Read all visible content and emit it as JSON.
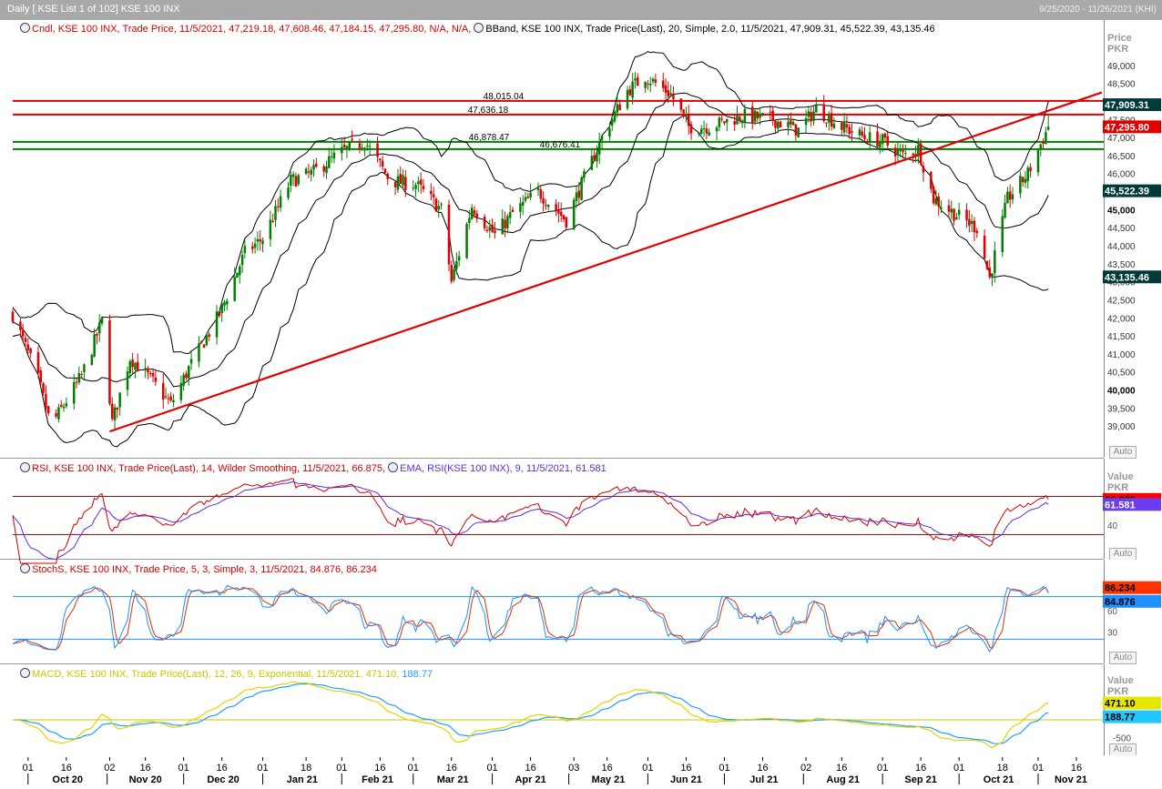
{
  "window": {
    "title": "Daily [.KSE List 1 of 102] KSE 100 INX",
    "range": "9/25/2020 - 11/26/2021 (KHI)",
    "controls": "▼ ✕"
  },
  "price_pane": {
    "legend_cndl": "Cndl, KSE 100 INX, Trade Price, 11/5/2021, 47,219.18, 47,608.46, 47,184.15, 47,295.80, N/A, N/A,",
    "legend_bband": "BBand, KSE 100 INX, Trade Price(Last), 20, Simple, 2.0, 11/5/2021, 47,909.31, 45,522.39, 43,135.46",
    "axis_title": "Price\nPKR",
    "auto_label": "Auto",
    "hlines": [
      {
        "label": "48,015.04",
        "value": 48015.04,
        "color": "#e00000"
      },
      {
        "label": "47,636.18",
        "value": 47636.18,
        "color": "#e00000"
      },
      {
        "label": "46,878.47",
        "value": 46878.47,
        "color": "#008000"
      },
      {
        "label": "46,676.41",
        "value": 46676.41,
        "color": "#008000"
      }
    ],
    "badges": [
      {
        "text": "47,909.31",
        "value": 47909.31,
        "bg": "#003a3a",
        "fg": "#ffffff"
      },
      {
        "text": "47,295.80",
        "value": 47295.8,
        "bg": "#e00000",
        "fg": "#ffffff"
      },
      {
        "text": "45,522.39",
        "value": 45522.39,
        "bg": "#003a3a",
        "fg": "#ffffff"
      },
      {
        "text": "43,135.46",
        "value": 43135.46,
        "bg": "#003a3a",
        "fg": "#ffffff"
      }
    ]
  },
  "rsi_pane": {
    "legend_rsi": "RSI, KSE 100 INX, Trade Price(Last),  14, Wilder Smoothing,  11/5/2021, 66.875,",
    "legend_ema": "EMA, RSI(KSE 100 INX),  9,  11/5/2021, 61.581",
    "axis_title": "Value\nPKR",
    "auto_label": "Auto",
    "ticks": [
      "40"
    ],
    "badges": [
      {
        "text": "66.875",
        "bg": "#ff0000",
        "fg": "#000000"
      },
      {
        "text": "61.581",
        "bg": "#6a3df0",
        "fg": "#ffffff"
      }
    ]
  },
  "stoch_pane": {
    "legend": "StochS, KSE 100 INX, Trade Price,  5, 3, Simple,  3,  11/5/2021, 84.876, 86.234",
    "auto_label": "Auto",
    "ticks": [
      "60",
      "30"
    ],
    "badges": [
      {
        "text": "86.234",
        "bg": "#ff3300",
        "fg": "#000000"
      },
      {
        "text": "84.876",
        "bg": "#1e90ff",
        "fg": "#000000"
      }
    ]
  },
  "macd_pane": {
    "legend_macd": "MACD, KSE 100 INX, Trade Price(Last),  12, 26, 9, Exponential,  11/5/2021, 471.10,",
    "legend_signal": "188.77",
    "axis_title": "Value\nPKR",
    "auto_label": "Auto",
    "ticks": [
      "-500"
    ],
    "badges": [
      {
        "text": "471.10",
        "bg": "#e6e600",
        "fg": "#000000"
      },
      {
        "text": "188.77",
        "bg": "#1ec8ff",
        "fg": "#000000"
      }
    ]
  },
  "x_axis": {
    "day_ticks": [
      "01",
      "16",
      "02",
      "16",
      "01",
      "16",
      "01",
      "18",
      "01",
      "16",
      "01",
      "16",
      "01",
      "03",
      "01",
      "16",
      "01",
      "16",
      "02",
      "16",
      "01",
      "16",
      "01",
      "18",
      "01",
      "16"
    ],
    "months": [
      "Oct 20",
      "Nov 20",
      "Dec 20",
      "Jan 21",
      "Feb 21",
      "Mar 21",
      "Apr 21",
      "May 21",
      "Jun 21",
      "Jul 21",
      "Aug 21",
      "Sep 21",
      "Oct 21",
      "Nov 21"
    ]
  },
  "chart_data": {
    "type": "candlestick",
    "title": "KSE 100 INX",
    "ylabel": "Price PKR",
    "ylim": [
      38500,
      49500
    ],
    "yticks": [
      39000,
      39500,
      40000,
      40500,
      41000,
      41500,
      42000,
      42500,
      43000,
      43500,
      44000,
      44500,
      45000,
      45500,
      46000,
      46500,
      47000,
      47500,
      48000,
      48500,
      49000
    ],
    "ytick_labels": [
      "39,000",
      "39,500",
      "40,000",
      "40,500",
      "41,000",
      "41,500",
      "42,000",
      "42,500",
      "43,000",
      "43,500",
      "44,000",
      "44,500",
      "45,000",
      "45,500",
      "46,000",
      "46,500",
      "47,000",
      "47,500",
      "48,000",
      "48,500",
      "49,000"
    ],
    "close_anchors": [
      [
        "2020-09-25",
        42100
      ],
      [
        "2020-10-05",
        40300
      ],
      [
        "2020-10-10",
        39000
      ],
      [
        "2020-10-22",
        40400
      ],
      [
        "2020-10-30",
        41900
      ],
      [
        "2020-11-03",
        39100
      ],
      [
        "2020-11-10",
        40900
      ],
      [
        "2020-11-18",
        40300
      ],
      [
        "2020-11-26",
        39600
      ],
      [
        "2020-12-03",
        40600
      ],
      [
        "2020-12-15",
        42100
      ],
      [
        "2020-12-25",
        43800
      ],
      [
        "2021-01-01",
        44200
      ],
      [
        "2021-01-12",
        45800
      ],
      [
        "2021-01-20",
        46000
      ],
      [
        "2021-02-01",
        46600
      ],
      [
        "2021-02-10",
        46900
      ],
      [
        "2021-02-20",
        45800
      ],
      [
        "2021-03-02",
        45700
      ],
      [
        "2021-03-12",
        45000
      ],
      [
        "2021-03-16",
        43000
      ],
      [
        "2021-03-24",
        45100
      ],
      [
        "2021-04-02",
        44300
      ],
      [
        "2021-04-09",
        44900
      ],
      [
        "2021-04-19",
        45500
      ],
      [
        "2021-04-30",
        44700
      ],
      [
        "2021-05-06",
        45700
      ],
      [
        "2021-05-14",
        47000
      ],
      [
        "2021-05-24",
        48300
      ],
      [
        "2021-05-31",
        48700
      ],
      [
        "2021-06-10",
        48200
      ],
      [
        "2021-06-17",
        47300
      ],
      [
        "2021-06-25",
        47300
      ],
      [
        "2021-07-08",
        47600
      ],
      [
        "2021-07-20",
        47500
      ],
      [
        "2021-07-30",
        47200
      ],
      [
        "2021-08-06",
        47800
      ],
      [
        "2021-08-16",
        47300
      ],
      [
        "2021-08-25",
        47000
      ],
      [
        "2021-09-01",
        46900
      ],
      [
        "2021-09-09",
        46500
      ],
      [
        "2021-09-15",
        46700
      ],
      [
        "2021-09-21",
        45300
      ],
      [
        "2021-10-01",
        44800
      ],
      [
        "2021-10-08",
        44500
      ],
      [
        "2021-10-13",
        43100
      ],
      [
        "2021-10-20",
        45300
      ],
      [
        "2021-10-28",
        46000
      ],
      [
        "2021-11-05",
        47295.8
      ]
    ],
    "last_bar": {
      "date": "2021-11-05",
      "open": 47219.18,
      "high": 47608.46,
      "low": 47184.15,
      "close": 47295.8
    },
    "trendline": {
      "start": [
        "2020-11-02",
        38850
      ],
      "end": [
        "2021-11-26",
        48250
      ]
    },
    "bollinger_last": {
      "upper": 47909.31,
      "middle": 45522.39,
      "lower": 43135.46
    },
    "rsi": {
      "period": 14,
      "last": 66.875,
      "ema_last": 61.581,
      "ref_lines": [
        70,
        30
      ]
    },
    "stoch": {
      "k_last": 84.876,
      "d_last": 86.234,
      "ref_lines": [
        80,
        20
      ]
    },
    "macd": {
      "fast": 12,
      "slow": 26,
      "signal": 9,
      "macd_last": 471.1,
      "signal_last": 188.77
    }
  }
}
